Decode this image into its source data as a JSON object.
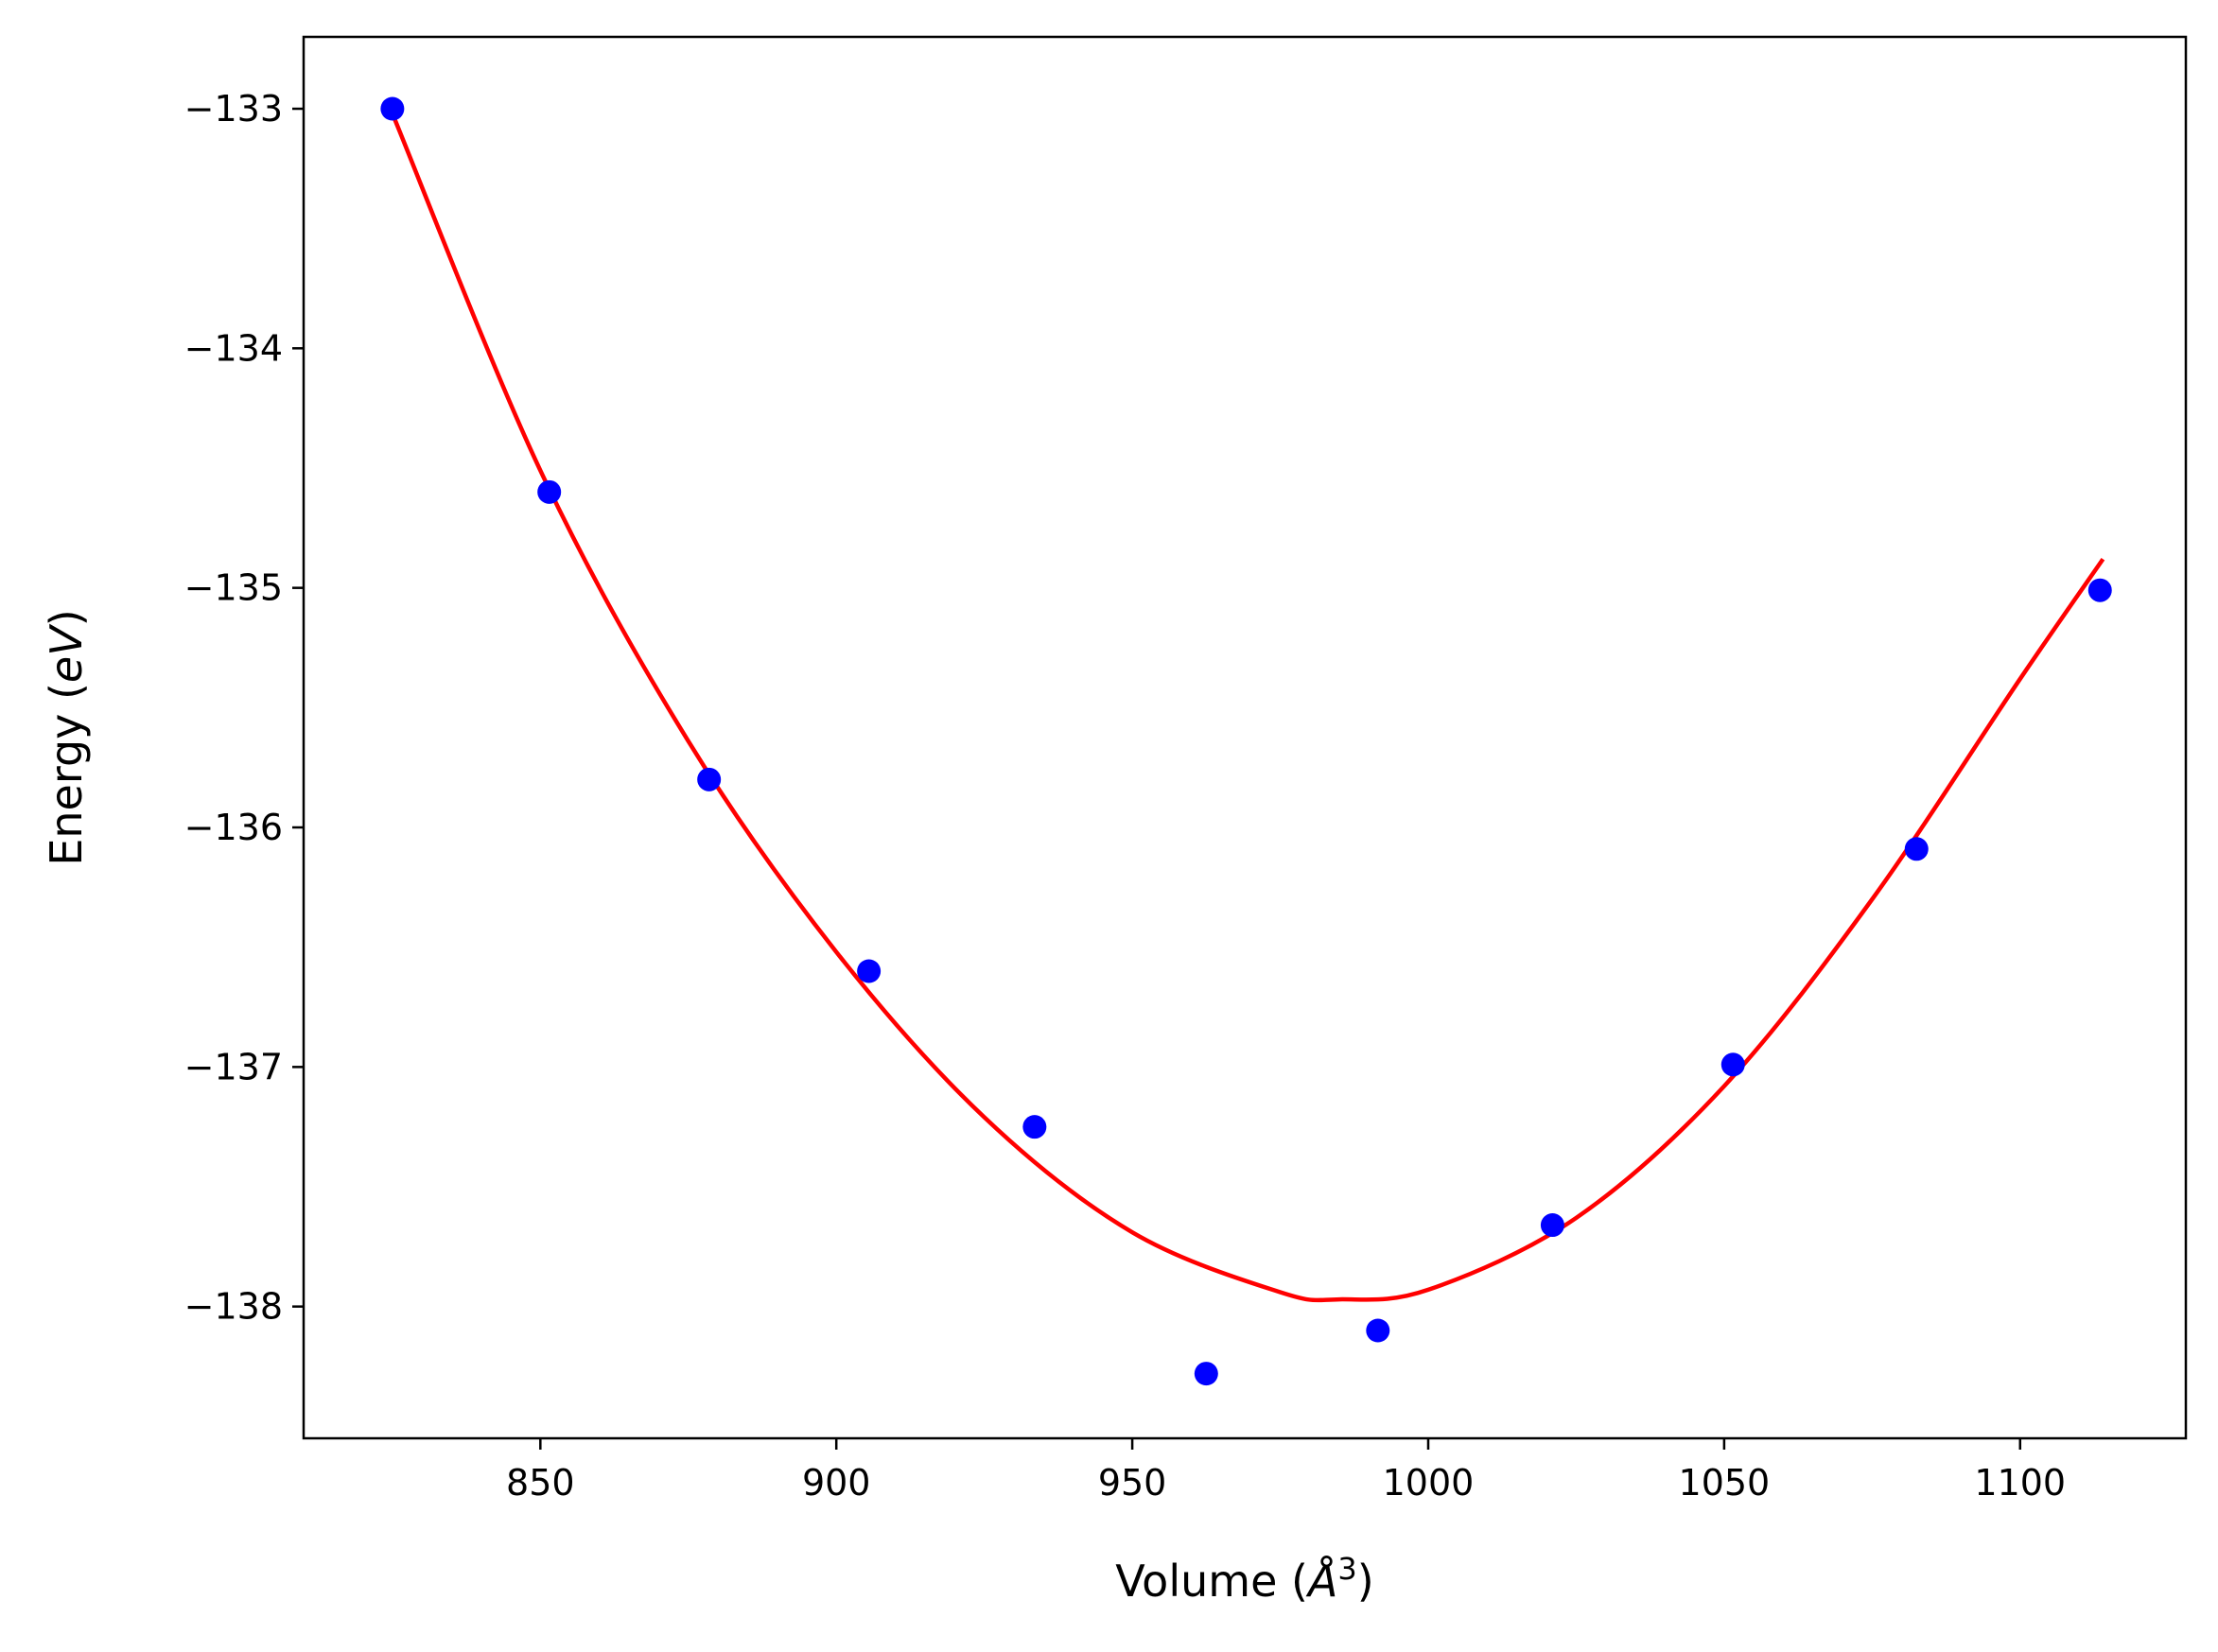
{
  "chart_data": {
    "type": "scatter",
    "title": "",
    "xlabel": {
      "prefix": "Volume (",
      "var": "Å",
      "sup": "3",
      "suffix": ")"
    },
    "ylabel": {
      "prefix": "Energy (",
      "var": "eV",
      "suffix": ")"
    },
    "xlim": [
      810,
      1128
    ],
    "ylim": [
      -138.55,
      -132.7
    ],
    "xticks": [
      850,
      900,
      950,
      1000,
      1050,
      1100
    ],
    "xtick_labels": [
      "850",
      "900",
      "950",
      "1000",
      "1050",
      "1100"
    ],
    "yticks": [
      -133,
      -134,
      -135,
      -136,
      -137,
      -138
    ],
    "ytick_labels": [
      "−133",
      "−134",
      "−135",
      "−136",
      "−137",
      "−138"
    ],
    "grid": false,
    "colors": {
      "points": "#0000ff",
      "fit": "#ff0000"
    },
    "series": [
      {
        "kind": "points",
        "x": [
          825.0,
          851.5,
          878.5,
          905.5,
          933.5,
          962.5,
          991.5,
          1021.0,
          1051.5,
          1082.5,
          1113.5
        ],
        "y": [
          -133.0,
          -134.6,
          -135.8,
          -136.6,
          -137.25,
          -138.28,
          -138.1,
          -137.66,
          -136.99,
          -136.09,
          -135.01
        ]
      },
      {
        "kind": "line",
        "x": [
          825.0,
          850.0,
          875.0,
          900.0,
          925.0,
          950.0,
          975.0,
          985.0,
          1000.0,
          1025.0,
          1050.0,
          1075.0,
          1100.0,
          1114.0
        ],
        "y": [
          -133.02,
          -134.51,
          -135.64,
          -136.52,
          -137.21,
          -137.69,
          -137.94,
          -137.97,
          -137.93,
          -137.63,
          -137.08,
          -136.3,
          -135.38,
          -134.88
        ]
      }
    ]
  }
}
